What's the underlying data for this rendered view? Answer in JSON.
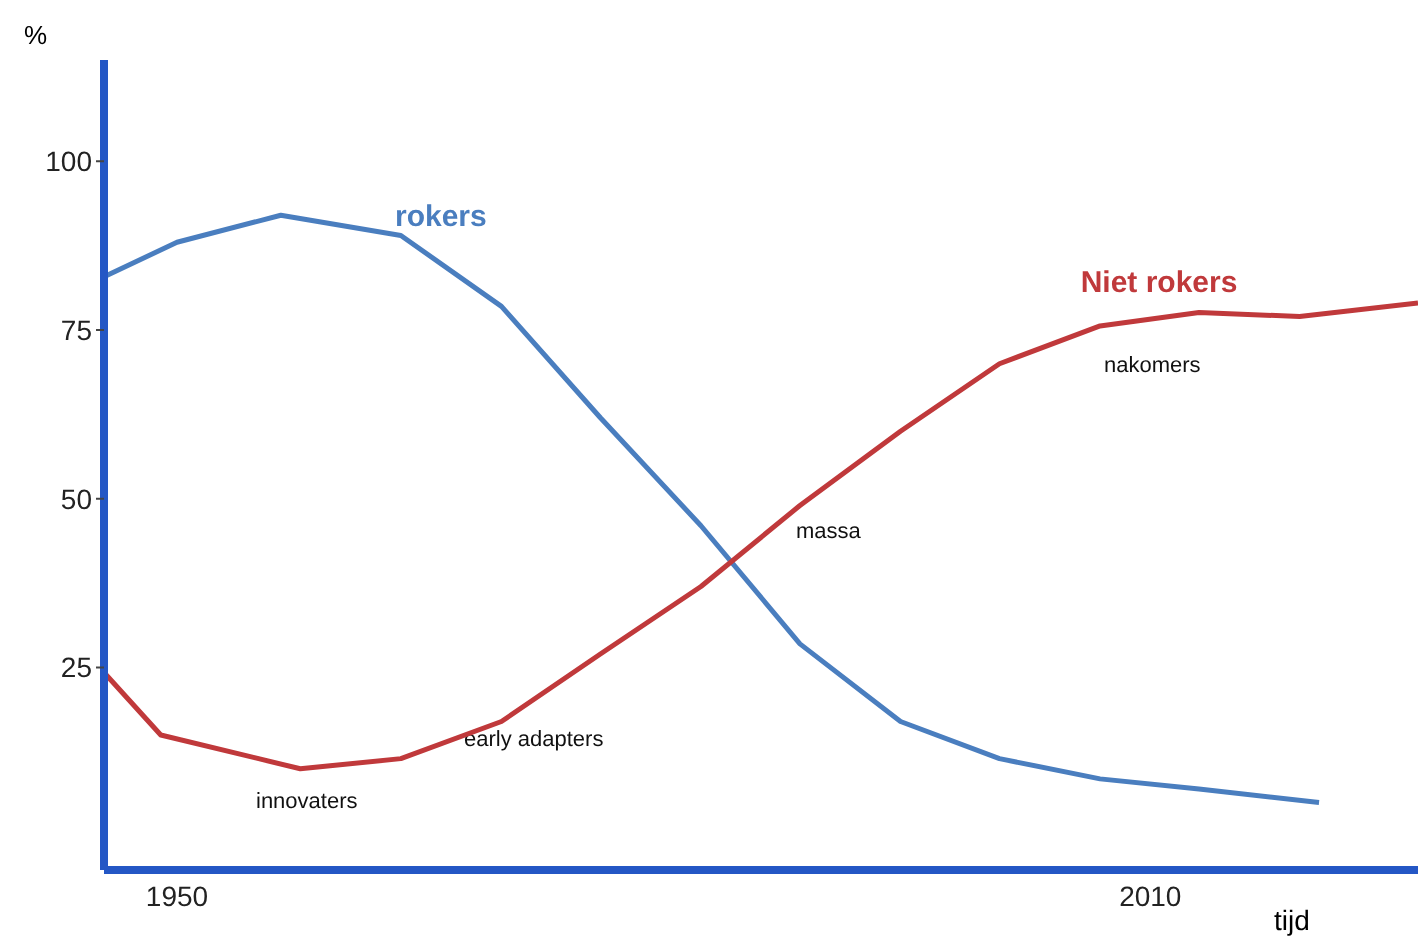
{
  "chart_data": {
    "type": "line",
    "xlabel": "tijd",
    "ylabel": "%",
    "xlim": [
      1945.5,
      2026.5
    ],
    "xticks": [
      1950,
      2010
    ],
    "ylim": [
      -5,
      115
    ],
    "yticks": [
      25,
      50,
      75,
      100
    ],
    "marker": "none",
    "line_style": "solid",
    "series": [
      {
        "name": "rokers",
        "color": "#4a7ebf",
        "x": [
          1945.6,
          1950,
          1956.4,
          1963.8,
          1970,
          1976.1,
          1982.3,
          1988.4,
          1994.6,
          2000.7,
          2006.9,
          2013,
          2020.4
        ],
        "values": [
          83,
          88,
          92,
          89,
          78.5,
          62,
          46,
          28.5,
          17,
          11.5,
          8.5,
          7,
          5
        ]
      },
      {
        "name": "Niet rokers",
        "color": "#c0393b",
        "x": [
          1945.6,
          1949,
          1957.6,
          1963.8,
          1970,
          1976.1,
          1982.3,
          1988.4,
          1994.6,
          2000.7,
          2006.9,
          2013,
          2019.2,
          2026.5
        ],
        "values": [
          24,
          15,
          10,
          11.5,
          17,
          27,
          37,
          49,
          60,
          70,
          75.6,
          77.6,
          77,
          79
        ]
      }
    ],
    "annotations": [
      "innovaters",
      "early adapters",
      "massa",
      "nakomers"
    ]
  }
}
